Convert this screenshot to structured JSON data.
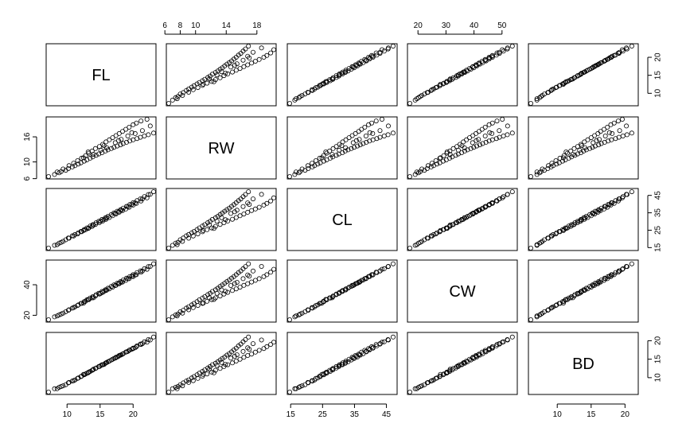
{
  "chart_data": {
    "type": "scatter",
    "kind": "scatterplot-matrix",
    "title": "",
    "variables": [
      "FL",
      "RW",
      "CL",
      "CW",
      "BD"
    ],
    "ranges": {
      "FL": [
        7.2,
        23.1
      ],
      "RW": [
        6.5,
        20.2
      ],
      "CL": [
        14.7,
        47.6
      ],
      "CW": [
        17.1,
        54.6
      ],
      "BD": [
        6.1,
        21.6
      ]
    },
    "ticks": {
      "FL": [
        10,
        15,
        20
      ],
      "RW": [
        6,
        8,
        10,
        14,
        18
      ],
      "CL": [
        15,
        25,
        35,
        45
      ],
      "CW": [
        20,
        30,
        40,
        50
      ],
      "BD": [
        10,
        15,
        20
      ]
    },
    "left_ticks": {
      "RW": [
        6,
        10,
        16
      ],
      "CW": [
        20,
        40
      ]
    },
    "axis_sides": {
      "top": [
        "RW",
        "CW"
      ],
      "bottom": [
        "FL",
        "CL",
        "BD"
      ],
      "left": [
        "RW",
        "CW"
      ],
      "right": [
        "FL",
        "CL",
        "BD"
      ]
    },
    "observations": [
      [
        7.2,
        6.5,
        14.7,
        17.1,
        6.1
      ],
      [
        8.1,
        7.0,
        16.3,
        19.0,
        7.0
      ],
      [
        8.8,
        7.4,
        17.6,
        20.2,
        7.4
      ],
      [
        9.1,
        7.7,
        18.0,
        20.8,
        7.6
      ],
      [
        9.8,
        8.0,
        19.5,
        22.3,
        8.1
      ],
      [
        10.2,
        8.4,
        20.5,
        23.3,
        8.6
      ],
      [
        10.8,
        8.8,
        21.8,
        24.7,
        9.1
      ],
      [
        11.2,
        9.1,
        22.5,
        25.6,
        9.4
      ],
      [
        11.7,
        9.5,
        23.5,
        26.8,
        9.9
      ],
      [
        12.1,
        9.8,
        24.3,
        27.8,
        10.3
      ],
      [
        12.6,
        10.2,
        25.4,
        29.0,
        10.8
      ],
      [
        13.0,
        10.5,
        26.3,
        30.1,
        11.2
      ],
      [
        13.5,
        10.9,
        27.4,
        31.3,
        11.7
      ],
      [
        13.9,
        11.2,
        28.2,
        32.2,
        12.1
      ],
      [
        14.4,
        11.6,
        29.3,
        33.5,
        12.6
      ],
      [
        14.8,
        11.9,
        30.1,
        34.4,
        13.0
      ],
      [
        15.3,
        12.2,
        31.2,
        35.6,
        13.5
      ],
      [
        15.8,
        12.6,
        32.1,
        36.7,
        13.9
      ],
      [
        16.2,
        12.9,
        33.0,
        37.7,
        14.3
      ],
      [
        16.7,
        13.2,
        34.0,
        38.9,
        14.8
      ],
      [
        17.1,
        13.5,
        34.9,
        39.9,
        15.2
      ],
      [
        17.6,
        13.8,
        35.9,
        41.0,
        15.6
      ],
      [
        18.1,
        14.1,
        36.8,
        42.1,
        16.1
      ],
      [
        18.5,
        14.4,
        37.7,
        43.1,
        16.5
      ],
      [
        19.0,
        14.7,
        38.7,
        44.3,
        17.0
      ],
      [
        19.5,
        15.0,
        39.7,
        45.4,
        17.5
      ],
      [
        20.0,
        15.3,
        40.8,
        46.6,
        18.0
      ],
      [
        20.6,
        15.6,
        42.0,
        48.0,
        18.6
      ],
      [
        21.1,
        15.9,
        43.0,
        49.1,
        19.1
      ],
      [
        21.7,
        16.2,
        44.3,
        50.5,
        19.7
      ],
      [
        22.3,
        16.5,
        45.5,
        51.9,
        20.3
      ],
      [
        23.1,
        16.9,
        47.1,
        53.7,
        21.0
      ],
      [
        8.5,
        7.6,
        16.7,
        19.6,
        7.0
      ],
      [
        9.4,
        8.3,
        18.6,
        21.4,
        7.8
      ],
      [
        10.3,
        9.1,
        20.4,
        23.6,
        8.7
      ],
      [
        11.0,
        9.7,
        21.7,
        25.0,
        9.2
      ],
      [
        11.6,
        10.3,
        22.9,
        26.4,
        9.8
      ],
      [
        12.2,
        10.9,
        24.1,
        27.8,
        10.4
      ],
      [
        12.8,
        11.5,
        25.3,
        29.2,
        11.0
      ],
      [
        13.3,
        12.1,
        26.3,
        30.3,
        11.5
      ],
      [
        13.8,
        12.6,
        27.2,
        31.4,
        12.0
      ],
      [
        14.3,
        13.2,
        28.3,
        32.6,
        12.5
      ],
      [
        14.9,
        13.7,
        29.3,
        33.9,
        13.0
      ],
      [
        15.4,
        14.2,
        30.3,
        35.0,
        13.5
      ],
      [
        15.9,
        14.8,
        31.3,
        36.2,
        14.0
      ],
      [
        16.4,
        15.3,
        32.3,
        37.3,
        14.5
      ],
      [
        16.9,
        15.8,
        33.3,
        38.4,
        15.0
      ],
      [
        17.4,
        16.3,
        34.3,
        39.6,
        15.5
      ],
      [
        17.9,
        16.8,
        35.3,
        40.7,
        16.0
      ],
      [
        18.4,
        17.3,
        36.3,
        41.8,
        16.4
      ],
      [
        18.9,
        17.8,
        37.2,
        42.9,
        16.9
      ],
      [
        19.4,
        18.3,
        38.2,
        44.0,
        17.4
      ],
      [
        20.0,
        18.9,
        39.4,
        45.4,
        17.9
      ],
      [
        20.5,
        19.3,
        40.4,
        46.6,
        18.4
      ],
      [
        21.2,
        19.8,
        41.8,
        48.2,
        19.0
      ],
      [
        22.1,
        20.2,
        43.6,
        50.1,
        19.6
      ],
      [
        12.5,
        11.0,
        24.8,
        28.0,
        10.9
      ],
      [
        14.0,
        11.8,
        28.0,
        31.5,
        12.3
      ],
      [
        15.1,
        12.8,
        30.2,
        34.4,
        13.3
      ],
      [
        16.0,
        13.4,
        32.2,
        36.6,
        14.1
      ],
      [
        17.3,
        14.6,
        34.6,
        39.5,
        15.3
      ],
      [
        18.2,
        15.4,
        36.5,
        41.6,
        16.2
      ],
      [
        19.2,
        16.2,
        38.6,
        44.0,
        17.1
      ],
      [
        20.3,
        16.8,
        40.7,
        46.4,
        18.1
      ],
      [
        21.4,
        17.5,
        43.0,
        49.0,
        19.2
      ],
      [
        13.2,
        12.4,
        26.0,
        30.4,
        11.3
      ],
      [
        15.6,
        13.9,
        31.0,
        35.7,
        13.6
      ],
      [
        17.8,
        15.1,
        35.6,
        40.8,
        15.8
      ],
      [
        19.8,
        17.0,
        39.8,
        45.6,
        17.7
      ],
      [
        22.6,
        18.6,
        45.6,
        52.0,
        20.2
      ]
    ]
  }
}
